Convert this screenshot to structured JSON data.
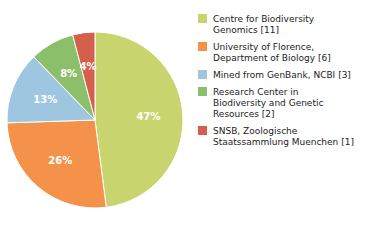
{
  "chart_data": {
    "type": "pie",
    "categories": [
      "Centre for Biodiversity\nGenomics [11]",
      "University of Florence,\nDepartment of Biology [6]",
      "Mined from GenBank, NCBI [3]",
      "Research Center in\nBiodiversity and Genetic\nResources [2]",
      "SNSB, Zoologische\nStaatssammlung Muenchen [1]"
    ],
    "values": [
      47,
      26,
      13,
      8,
      4
    ],
    "value_labels": [
      "47%",
      "26%",
      "13%",
      "8%",
      "4%"
    ],
    "colors": [
      "#c8d46e",
      "#f4924a",
      "#9ec6e0",
      "#8cbf6a",
      "#d45f4a"
    ],
    "data_labels": true,
    "legend": "right"
  }
}
